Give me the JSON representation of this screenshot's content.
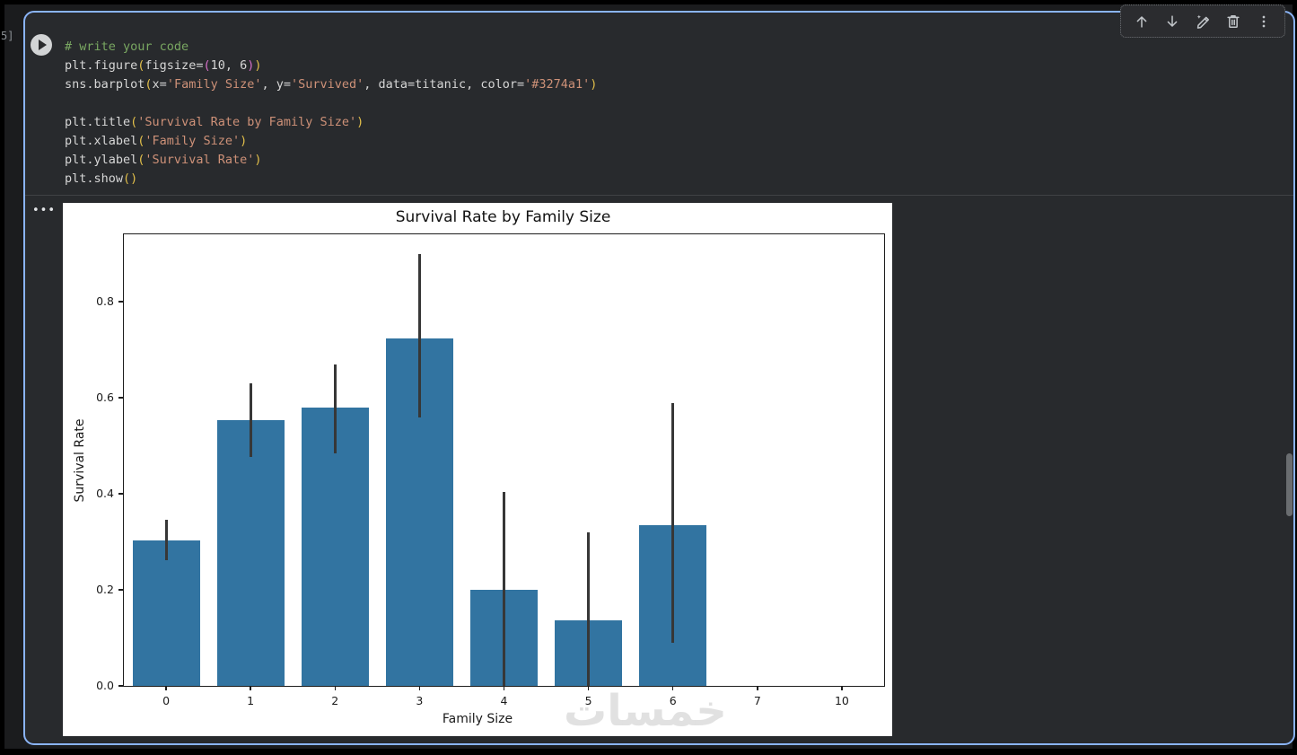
{
  "cell": {
    "execution_count": "5]",
    "code_lines": [
      [
        [
          "cm",
          "# write your code"
        ]
      ],
      [
        [
          "tx",
          "plt.figure"
        ],
        [
          "b1",
          "("
        ],
        [
          "tx",
          "figsize="
        ],
        [
          "b2",
          "("
        ],
        [
          "tx",
          "10, 6"
        ],
        [
          "b2",
          ")"
        ],
        [
          "b1",
          ")"
        ]
      ],
      [
        [
          "tx",
          "sns.barplot"
        ],
        [
          "b1",
          "("
        ],
        [
          "tx",
          "x="
        ],
        [
          "st",
          "'Family Size'"
        ],
        [
          "tx",
          ", y="
        ],
        [
          "st",
          "'Survived'"
        ],
        [
          "tx",
          ", data=titanic, color="
        ],
        [
          "st",
          "'#3274a1'"
        ],
        [
          "b1",
          ")"
        ]
      ],
      [],
      [
        [
          "tx",
          "plt.title"
        ],
        [
          "b1",
          "("
        ],
        [
          "st",
          "'Survival Rate by Family Size'"
        ],
        [
          "b1",
          ")"
        ]
      ],
      [
        [
          "tx",
          "plt.xlabel"
        ],
        [
          "b1",
          "("
        ],
        [
          "st",
          "'Family Size'"
        ],
        [
          "b1",
          ")"
        ]
      ],
      [
        [
          "tx",
          "plt.ylabel"
        ],
        [
          "b1",
          "("
        ],
        [
          "st",
          "'Survival Rate'"
        ],
        [
          "b1",
          ")"
        ]
      ],
      [
        [
          "tx",
          "plt.show"
        ],
        [
          "b1",
          "("
        ],
        [
          "b1",
          ")"
        ]
      ]
    ]
  },
  "toolbar": {
    "buttons": [
      {
        "name": "move-cell-up",
        "icon": "arrow-up-icon"
      },
      {
        "name": "move-cell-down",
        "icon": "arrow-down-icon"
      },
      {
        "name": "edit-with-ai",
        "icon": "pencil-sparkle-icon"
      },
      {
        "name": "delete-cell",
        "icon": "trash-icon"
      },
      {
        "name": "more-cell-actions",
        "icon": "kebab-menu-icon"
      }
    ]
  },
  "output": {
    "overflow_button": "•••",
    "watermark": "خمسات"
  },
  "chart_data": {
    "type": "bar",
    "title": "Survival Rate by Family Size",
    "xlabel": "Family Size",
    "ylabel": "Survival Rate",
    "categories": [
      "0",
      "1",
      "2",
      "3",
      "4",
      "5",
      "6",
      "7",
      "10"
    ],
    "values": [
      0.303,
      0.553,
      0.579,
      0.723,
      0.2,
      0.136,
      0.334,
      0,
      0
    ],
    "error_bars": [
      [
        0.261,
        0.346
      ],
      [
        0.476,
        0.63
      ],
      [
        0.484,
        0.669
      ],
      [
        0.558,
        0.898
      ],
      [
        0.0,
        0.404
      ],
      [
        0.0,
        0.32
      ],
      [
        0.09,
        0.588
      ],
      null,
      null
    ],
    "yticks": [
      0.0,
      0.2,
      0.4,
      0.6,
      0.8
    ],
    "ylim": [
      0,
      0.94
    ],
    "grid": false,
    "legend": null,
    "bar_color": "#3274a1",
    "errorbar_color": "#373737",
    "background": "#ffffff"
  },
  "colors": {
    "cell_border_accent": "#8ab4f8",
    "cell_background": "#282a2d",
    "code_comment": "#79a761",
    "code_string": "#ce9178",
    "bracket_level1": "#e2bf4a",
    "bracket_level2": "#d670c9"
  }
}
